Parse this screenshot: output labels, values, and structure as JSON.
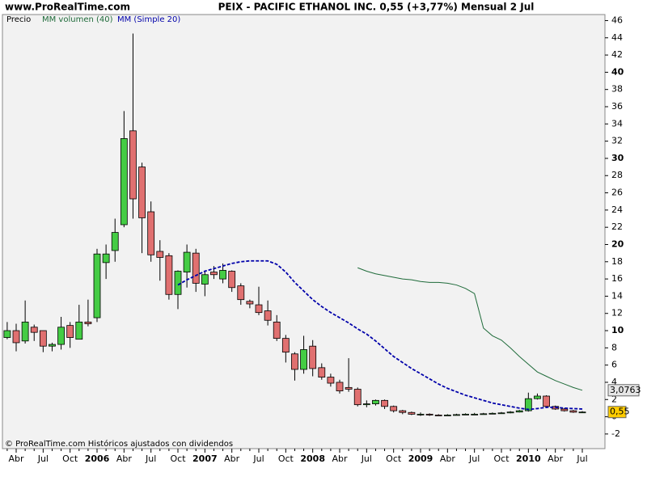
{
  "watermark": "www.ProRealTime.com",
  "footer": "© ProRealTime.com  Históricos ajustados con dividendos",
  "chart_data": {
    "type": "candlestick",
    "title": "PEIX - PACIFIC ETHANOL  INC.    0,55 (+3,77%)    Mensual  2 Jul",
    "name": "Precio",
    "up_color": "#44cc44",
    "down_color": "#e07070",
    "categories": [
      null,
      "Abr",
      null,
      null,
      "Jul",
      null,
      null,
      "Oct",
      null,
      null,
      "2006",
      null,
      null,
      "Abr",
      null,
      null,
      "Jul",
      null,
      null,
      "Oct",
      null,
      null,
      "2007",
      null,
      null,
      "Abr",
      null,
      null,
      "Jul",
      null,
      null,
      "Oct",
      null,
      null,
      "2008",
      null,
      null,
      "Abr",
      null,
      null,
      "Jul",
      null,
      null,
      "Oct",
      null,
      null,
      "2009",
      null,
      null,
      "Abr",
      null,
      null,
      "Jul",
      null,
      null,
      "Oct",
      null,
      null,
      "2010",
      null,
      null,
      "Abr",
      null,
      null,
      "Jul"
    ],
    "open": [
      9.2,
      10.0,
      8.8,
      10.4,
      10.0,
      8.2,
      8.4,
      10.6,
      9.0,
      11.0,
      11.5,
      17.9,
      19.3,
      22.3,
      33.2,
      29.0,
      23.8,
      19.2,
      18.7,
      14.2,
      16.8,
      19.0,
      15.4,
      16.8,
      16.0,
      16.9,
      15.2,
      13.4,
      13.0,
      12.3,
      11.0,
      9.1,
      7.3,
      5.5,
      8.2,
      5.7,
      4.6,
      4.0,
      3.4,
      3.2,
      1.4,
      1.5,
      1.9,
      1.2,
      0.7,
      0.5,
      0.3,
      0.3,
      0.2,
      0.15,
      0.2,
      0.25,
      0.3,
      0.3,
      0.35,
      0.4,
      0.45,
      0.55,
      0.7,
      2.1,
      2.4,
      1.2,
      0.9,
      0.7,
      0.53
    ],
    "high": [
      11.0,
      10.8,
      13.5,
      10.7,
      10.0,
      8.6,
      11.6,
      11.0,
      13.0,
      13.6,
      19.5,
      20.0,
      23.0,
      35.5,
      44.5,
      29.5,
      25.0,
      20.5,
      19.0,
      17.0,
      20.0,
      19.5,
      17.0,
      17.5,
      17.8,
      17.0,
      15.5,
      13.6,
      15.1,
      13.5,
      11.8,
      9.5,
      7.5,
      9.4,
      8.9,
      6.2,
      5.0,
      4.3,
      6.8,
      3.4,
      1.9,
      2.0,
      2.0,
      1.3,
      0.8,
      0.6,
      0.5,
      0.4,
      0.3,
      0.3,
      0.35,
      0.4,
      0.45,
      0.45,
      0.5,
      0.55,
      0.65,
      0.8,
      2.8,
      2.7,
      2.5,
      1.3,
      1.0,
      0.8,
      0.65
    ],
    "low": [
      9.0,
      7.6,
      8.5,
      8.8,
      7.5,
      7.6,
      7.8,
      8.0,
      9.0,
      10.5,
      11.0,
      16.0,
      18.0,
      22.0,
      23.0,
      19.0,
      18.0,
      15.8,
      13.6,
      12.5,
      15.0,
      14.5,
      14.0,
      16.0,
      15.5,
      14.5,
      13.0,
      12.6,
      11.8,
      10.6,
      8.8,
      6.3,
      4.2,
      5.0,
      4.7,
      4.3,
      3.5,
      2.7,
      2.9,
      1.2,
      1.1,
      1.3,
      0.9,
      0.5,
      0.3,
      0.2,
      0.1,
      0.1,
      0.1,
      0.1,
      0.15,
      0.2,
      0.2,
      0.25,
      0.3,
      0.35,
      0.4,
      0.5,
      0.6,
      2.0,
      1.0,
      0.8,
      0.6,
      0.45,
      0.48
    ],
    "close": [
      10.0,
      8.6,
      11.0,
      9.8,
      8.2,
      8.4,
      10.4,
      9.2,
      11.0,
      10.8,
      18.9,
      18.9,
      21.4,
      32.3,
      25.3,
      23.1,
      18.8,
      18.5,
      14.2,
      16.9,
      19.1,
      15.5,
      16.5,
      16.5,
      17.0,
      15.0,
      13.6,
      13.1,
      12.1,
      11.2,
      9.1,
      7.5,
      5.5,
      7.8,
      5.6,
      4.6,
      3.9,
      3.0,
      3.2,
      1.4,
      1.5,
      1.9,
      1.2,
      0.7,
      0.5,
      0.3,
      0.3,
      0.2,
      0.15,
      0.2,
      0.25,
      0.3,
      0.3,
      0.35,
      0.4,
      0.45,
      0.55,
      0.7,
      2.1,
      2.4,
      1.2,
      0.9,
      0.7,
      0.53,
      0.55
    ],
    "close_label": "0,55",
    "series": [
      {
        "name": "MM volumen (40)",
        "color": "#1f6b3a",
        "style": "solid",
        "values": [
          null,
          null,
          null,
          null,
          null,
          null,
          null,
          null,
          null,
          null,
          null,
          null,
          null,
          null,
          null,
          null,
          null,
          null,
          null,
          null,
          null,
          null,
          null,
          null,
          null,
          null,
          null,
          null,
          null,
          null,
          null,
          null,
          null,
          null,
          null,
          null,
          null,
          null,
          null,
          17.3,
          16.9,
          16.6,
          16.4,
          16.2,
          16.0,
          15.9,
          15.7,
          15.6,
          15.6,
          15.5,
          15.3,
          14.9,
          14.3,
          10.3,
          9.4,
          8.9,
          8.0,
          7.0,
          6.1,
          5.2,
          4.7,
          4.2,
          3.8,
          3.4,
          3.0763
        ],
        "last_label": "3,0763"
      },
      {
        "name": "MM (Simple 20)",
        "color": "#0000aa",
        "style": "dashed",
        "values": [
          null,
          null,
          null,
          null,
          null,
          null,
          null,
          null,
          null,
          null,
          null,
          null,
          null,
          null,
          null,
          null,
          null,
          null,
          null,
          15.3,
          15.9,
          16.4,
          16.9,
          17.2,
          17.5,
          17.8,
          18.0,
          18.1,
          18.1,
          18.1,
          17.7,
          16.8,
          15.6,
          14.6,
          13.6,
          12.8,
          12.1,
          11.5,
          10.9,
          10.2,
          9.6,
          8.8,
          7.9,
          7.0,
          6.3,
          5.6,
          5.0,
          4.4,
          3.8,
          3.3,
          2.9,
          2.5,
          2.2,
          1.9,
          1.6,
          1.4,
          1.2,
          1.0,
          0.85,
          0.95,
          1.1,
          1.1,
          1.0,
          0.95,
          0.9
        ]
      }
    ],
    "ylim": [
      -3.7,
      46.7
    ],
    "yticks": [
      -2,
      0,
      2,
      4,
      6,
      8,
      10,
      12,
      14,
      16,
      18,
      20,
      22,
      24,
      26,
      28,
      30,
      32,
      34,
      36,
      38,
      40,
      42,
      44,
      46
    ]
  }
}
